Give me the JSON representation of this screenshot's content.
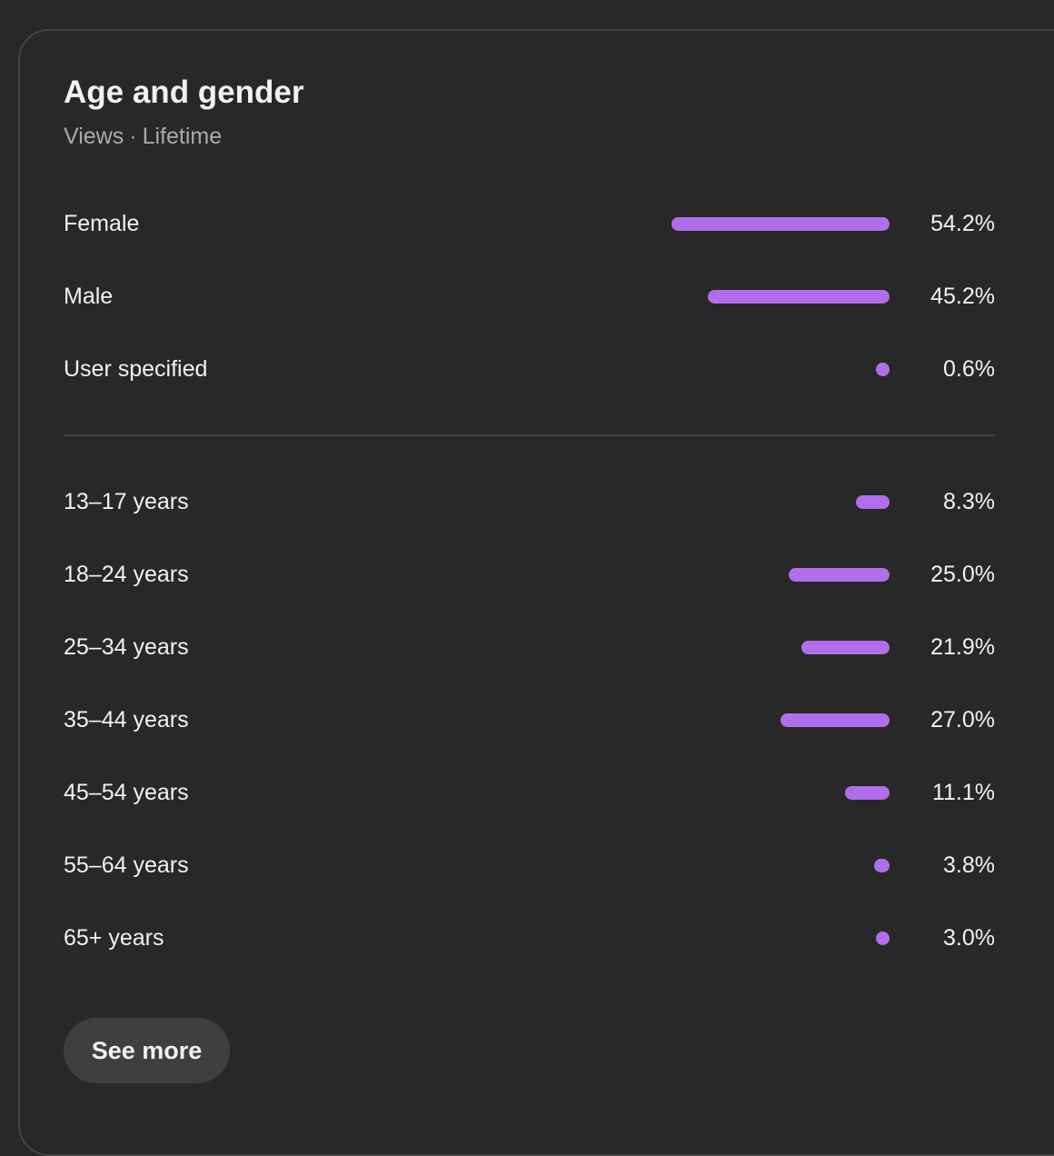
{
  "header": {
    "title": "Age and gender",
    "metric": "Views",
    "separator": "·",
    "period": "Lifetime"
  },
  "gender": [
    {
      "label": "Female",
      "value": "54.2%",
      "percent": 54.2
    },
    {
      "label": "Male",
      "value": "45.2%",
      "percent": 45.2
    },
    {
      "label": "User specified",
      "value": "0.6%",
      "percent": 0.6
    }
  ],
  "age": [
    {
      "label": "13–17 years",
      "value": "8.3%",
      "percent": 8.3
    },
    {
      "label": "18–24 years",
      "value": "25.0%",
      "percent": 25.0
    },
    {
      "label": "25–34 years",
      "value": "21.9%",
      "percent": 21.9
    },
    {
      "label": "35–44 years",
      "value": "27.0%",
      "percent": 27.0
    },
    {
      "label": "45–54 years",
      "value": "11.1%",
      "percent": 11.1
    },
    {
      "label": "55–64 years",
      "value": "3.8%",
      "percent": 3.8
    },
    {
      "label": "65+ years",
      "value": "3.0%",
      "percent": 3.0
    }
  ],
  "actions": {
    "see_more_label": "See more"
  },
  "colors": {
    "bar": "#b16eea",
    "background": "#282828",
    "text": "#f1f1f1",
    "muted": "#aaaaaa"
  }
}
